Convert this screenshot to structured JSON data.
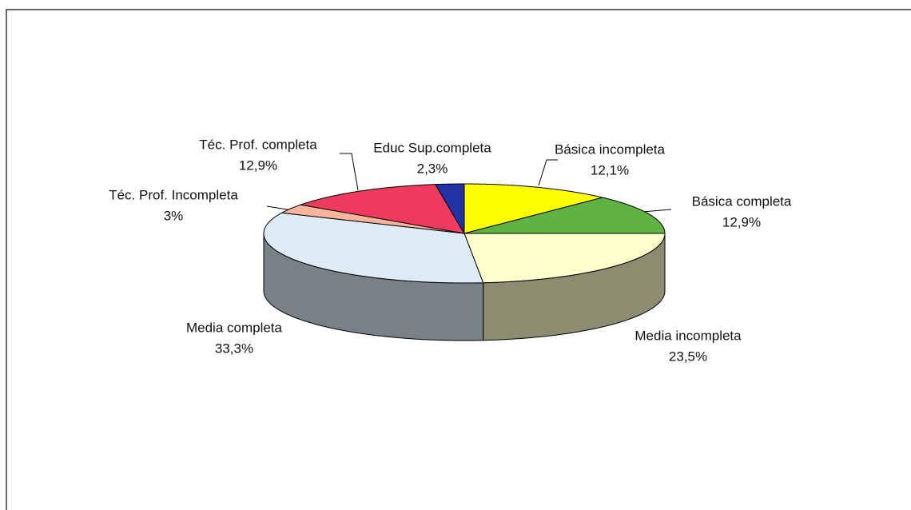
{
  "chart_data": {
    "type": "pie",
    "categories": [
      "Básica incompleta",
      "Básica completa",
      "Media incompleta",
      "Media completa",
      "Téc. Prof. Incompleta",
      "Téc. Prof. completa",
      "Educ Sup.completa"
    ],
    "values": [
      12.1,
      12.9,
      23.5,
      33.3,
      3,
      12.9,
      2.3
    ],
    "value_labels": [
      "12,1%",
      "12,9%",
      "23,5%",
      "33,3%",
      "3%",
      "12,9%",
      "2,3%"
    ],
    "colors": [
      "#ffff00",
      "#5fb343",
      "#ffffcc",
      "#dcebf5",
      "#f6b49a",
      "#ee3a5c",
      "#2233a8"
    ]
  }
}
